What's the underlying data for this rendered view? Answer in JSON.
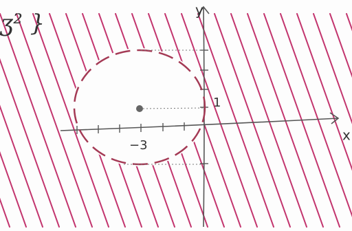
{
  "annotation": "ʒ² }",
  "axes": {
    "x_label": "x",
    "y_label": "y"
  },
  "labels": {
    "center_x": "−3",
    "center_y": "1"
  }
}
